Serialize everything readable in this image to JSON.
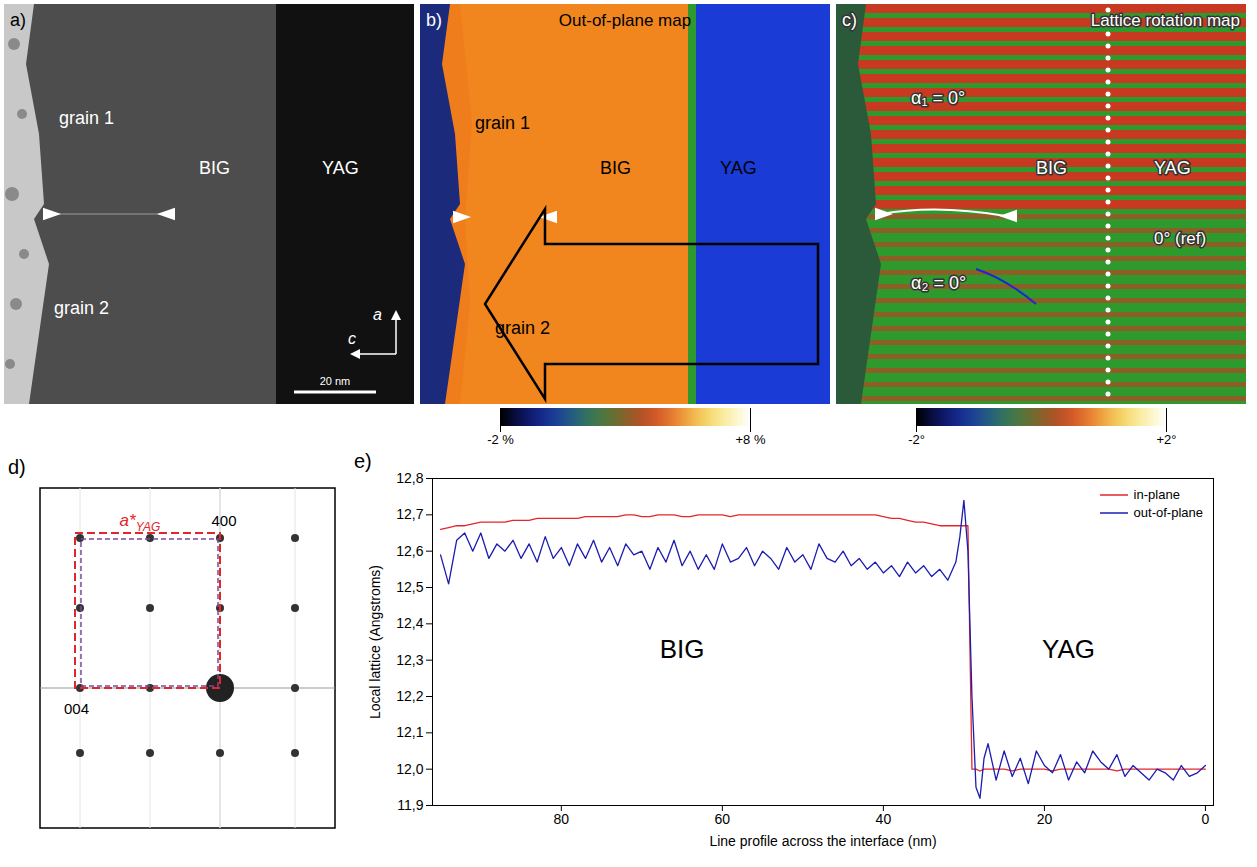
{
  "panels": {
    "a": {
      "panel": "a)",
      "grain1": "grain 1",
      "grain2": "grain 2",
      "left": "BIG",
      "right": "YAG",
      "axis_up": "a",
      "axis_left": "c",
      "scale_bar": "20 nm"
    },
    "b": {
      "panel": "b)",
      "title": "Out-of-plane map",
      "grain1": "grain 1",
      "grain2": "grain 2",
      "left": "BIG",
      "right": "YAG",
      "colorbar": {
        "range": [
          -2,
          8
        ],
        "ticks": [
          {
            "value": -2,
            "label": "-2 %"
          },
          {
            "value": 8,
            "label": "+8 %"
          }
        ]
      }
    },
    "c": {
      "panel": "c)",
      "title": "Lattice rotation map",
      "angle1": "α₁ = 0°",
      "angle2": "α₂ = 0°",
      "left": "BIG",
      "right": "YAG",
      "reference": "0° (ref)",
      "colorbar": {
        "range": [
          -2,
          2
        ],
        "ticks": [
          {
            "value": -2,
            "label": "-2°"
          },
          {
            "value": 2,
            "label": "+2°"
          }
        ]
      }
    },
    "d": {
      "panel": "d)",
      "spot_top": "400",
      "spot_left": "004",
      "vector": "a*",
      "vector_subscript": "YAG"
    }
  },
  "chart_data": {
    "panel": "e)",
    "type": "line",
    "xlabel": "Line profile across the interface (nm)",
    "ylabel": "Local lattice (Angstroms)",
    "xlim": [
      96,
      -1
    ],
    "xticks": [
      80,
      60,
      40,
      20,
      0
    ],
    "ylim": [
      11.9,
      12.8
    ],
    "yticks": [
      {
        "value": 11.9,
        "label": "11,9"
      },
      {
        "value": 12.0,
        "label": "12,0"
      },
      {
        "value": 12.1,
        "label": "12,1"
      },
      {
        "value": 12.2,
        "label": "12,2"
      },
      {
        "value": 12.3,
        "label": "12,3"
      },
      {
        "value": 12.4,
        "label": "12,4"
      },
      {
        "value": 12.5,
        "label": "12,5"
      },
      {
        "value": 12.6,
        "label": "12,6"
      },
      {
        "value": 12.7,
        "label": "12,7"
      },
      {
        "value": 12.8,
        "label": "12,8"
      }
    ],
    "legend": "upper right",
    "annotations": [
      {
        "text": "BIG",
        "x": 65,
        "y": 12.33
      },
      {
        "text": "YAG",
        "x": 17,
        "y": 12.33
      }
    ],
    "x": [
      95,
      94,
      93,
      92,
      91,
      90,
      89,
      88,
      87,
      86,
      85,
      84,
      83,
      82,
      81,
      80,
      79,
      78,
      77,
      76,
      75,
      74,
      73,
      72,
      71,
      70,
      69,
      68,
      67,
      66,
      65,
      64,
      63,
      62,
      61,
      60,
      59,
      58,
      57,
      56,
      55,
      54,
      53,
      52,
      51,
      50,
      49,
      48,
      47,
      46,
      45,
      44,
      43,
      42,
      41,
      40,
      39,
      38,
      37,
      36,
      35,
      34,
      33,
      32,
      31,
      30.5,
      30,
      29.5,
      29,
      28.5,
      28,
      27.5,
      27,
      26,
      25,
      24,
      23,
      22,
      21,
      20,
      19,
      18,
      17,
      16,
      15,
      14,
      13,
      12,
      11,
      10,
      9,
      8,
      7,
      6,
      5,
      4,
      3,
      2,
      1,
      0
    ],
    "series": [
      {
        "name": "in-plane",
        "color": "#e3262a",
        "values": [
          12.66,
          12.665,
          12.67,
          12.67,
          12.675,
          12.68,
          12.68,
          12.68,
          12.68,
          12.685,
          12.685,
          12.685,
          12.69,
          12.69,
          12.69,
          12.69,
          12.69,
          12.69,
          12.695,
          12.695,
          12.695,
          12.695,
          12.695,
          12.7,
          12.7,
          12.695,
          12.695,
          12.7,
          12.7,
          12.7,
          12.695,
          12.695,
          12.7,
          12.7,
          12.7,
          12.7,
          12.695,
          12.7,
          12.7,
          12.7,
          12.7,
          12.7,
          12.7,
          12.7,
          12.7,
          12.7,
          12.7,
          12.7,
          12.7,
          12.7,
          12.7,
          12.7,
          12.7,
          12.7,
          12.7,
          12.695,
          12.69,
          12.69,
          12.685,
          12.68,
          12.68,
          12.675,
          12.67,
          12.67,
          12.67,
          12.67,
          12.67,
          12.67,
          12.0,
          12.0,
          11.995,
          12.0,
          12.0,
          12.0,
          12.0,
          11.995,
          12.0,
          12.0,
          12.0,
          12.0,
          11.995,
          12.0,
          12.0,
          12.0,
          12.0,
          12.0,
          12.0,
          12.0,
          11.995,
          12.0,
          12.0,
          12.0,
          12.0,
          12.0,
          12.0,
          12.0,
          12.0,
          12.0,
          12.0,
          12.0
        ]
      },
      {
        "name": "out-of-plane",
        "color": "#1c1cb0",
        "values": [
          12.59,
          12.51,
          12.63,
          12.65,
          12.6,
          12.65,
          12.58,
          12.62,
          12.6,
          12.63,
          12.58,
          12.62,
          12.57,
          12.64,
          12.58,
          12.61,
          12.56,
          12.62,
          12.58,
          12.63,
          12.57,
          12.61,
          12.56,
          12.62,
          12.59,
          12.6,
          12.55,
          12.61,
          12.57,
          12.63,
          12.56,
          12.6,
          12.55,
          12.59,
          12.55,
          12.62,
          12.57,
          12.58,
          12.61,
          12.56,
          12.6,
          12.58,
          12.55,
          12.61,
          12.57,
          12.59,
          12.55,
          12.62,
          12.58,
          12.57,
          12.6,
          12.56,
          12.58,
          12.55,
          12.57,
          12.54,
          12.56,
          12.53,
          12.57,
          12.54,
          12.56,
          12.53,
          12.55,
          12.52,
          12.57,
          12.64,
          12.74,
          12.6,
          12.2,
          11.95,
          11.92,
          12.03,
          12.07,
          11.97,
          12.05,
          11.98,
          12.03,
          11.96,
          12.05,
          12.01,
          11.99,
          12.04,
          11.97,
          12.02,
          11.99,
          12.05,
          12.02,
          12.0,
          12.04,
          11.98,
          12.01,
          11.99,
          11.97,
          12.0,
          11.99,
          11.97,
          12.01,
          11.98,
          11.99,
          12.01
        ]
      }
    ]
  }
}
